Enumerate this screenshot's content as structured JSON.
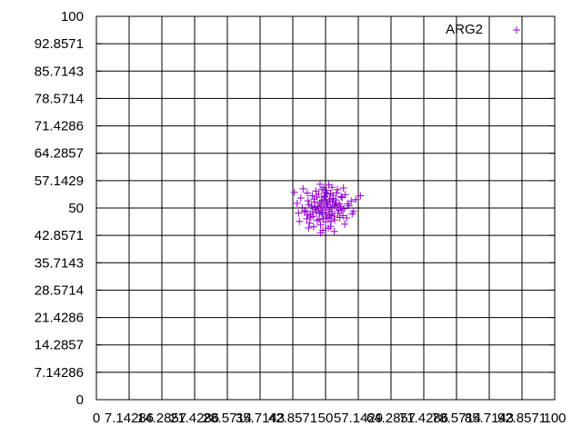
{
  "chart_data": {
    "type": "scatter",
    "title": "",
    "xlabel": "",
    "ylabel": "",
    "xlim": [
      0,
      100
    ],
    "ylim": [
      0,
      100
    ],
    "grid": true,
    "legend_position": "top-right",
    "x_ticks": [
      "0",
      "7.14286",
      "14.2857",
      "21.4286",
      "28.5714",
      "35.7143",
      "42.8571",
      "50",
      "57.1429",
      "64.2857",
      "71.4286",
      "78.5714",
      "85.7143",
      "92.8571",
      "100"
    ],
    "y_ticks": [
      "0",
      "7.14286",
      "14.2857",
      "21.4286",
      "28.5714",
      "35.7143",
      "42.8571",
      "50",
      "57.1429",
      "64.2857",
      "71.4286",
      "78.5714",
      "85.7143",
      "92.8571",
      "100"
    ],
    "series": [
      {
        "name": "ARG2",
        "color": "#9400d3",
        "marker": "plus",
        "points": [
          [
            50.0,
            50.0
          ],
          [
            48.7,
            51.2
          ],
          [
            51.4,
            49.1
          ],
          [
            49.2,
            48.3
          ],
          [
            52.1,
            50.8
          ],
          [
            47.8,
            49.6
          ],
          [
            50.9,
            52.3
          ],
          [
            49.5,
            47.2
          ],
          [
            53.0,
            51.0
          ],
          [
            46.9,
            50.5
          ],
          [
            51.8,
            47.9
          ],
          [
            48.1,
            52.8
          ],
          [
            50.3,
            53.6
          ],
          [
            52.7,
            48.6
          ],
          [
            47.3,
            47.8
          ],
          [
            49.9,
            54.1
          ],
          [
            54.0,
            49.8
          ],
          [
            46.2,
            51.9
          ],
          [
            51.2,
            46.5
          ],
          [
            48.9,
            45.6
          ],
          [
            53.6,
            52.7
          ],
          [
            45.7,
            49.3
          ],
          [
            50.6,
            44.7
          ],
          [
            52.4,
            53.9
          ],
          [
            47.1,
            53.2
          ],
          [
            55.1,
            50.6
          ],
          [
            44.9,
            50.1
          ],
          [
            49.6,
            55.3
          ],
          [
            54.6,
            47.4
          ],
          [
            46.5,
            46.1
          ],
          [
            51.5,
            51.6
          ],
          [
            48.4,
            49.9
          ],
          [
            50.1,
            48.8
          ],
          [
            49.0,
            50.7
          ],
          [
            51.0,
            50.2
          ],
          [
            52.9,
            49.5
          ],
          [
            47.6,
            51.5
          ],
          [
            50.8,
            51.9
          ],
          [
            49.3,
            48.9
          ],
          [
            48.3,
            50.4
          ],
          [
            51.7,
            52.5
          ],
          [
            50.4,
            47.6
          ],
          [
            53.3,
            50.4
          ],
          [
            46.7,
            48.4
          ],
          [
            49.8,
            52.9
          ],
          [
            52.0,
            46.9
          ],
          [
            48.6,
            47.0
          ],
          [
            50.2,
            54.6
          ],
          [
            55.6,
            51.8
          ],
          [
            44.6,
            52.6
          ],
          [
            51.1,
            45.2
          ],
          [
            47.9,
            54.4
          ],
          [
            53.8,
            48.0
          ],
          [
            45.9,
            47.2
          ],
          [
            49.4,
            44.2
          ],
          [
            52.6,
            54.8
          ],
          [
            56.1,
            49.1
          ],
          [
            44.1,
            48.7
          ],
          [
            50.7,
            56.0
          ],
          [
            48.8,
            56.2
          ],
          [
            54.3,
            53.5
          ],
          [
            46.0,
            53.9
          ],
          [
            51.9,
            43.9
          ],
          [
            47.4,
            45.1
          ],
          [
            56.6,
            52.2
          ],
          [
            43.8,
            51.2
          ],
          [
            50.5,
            50.9
          ],
          [
            49.1,
            51.8
          ],
          [
            51.3,
            48.4
          ],
          [
            48.0,
            48.9
          ],
          [
            52.3,
            51.4
          ],
          [
            47.7,
            50.2
          ],
          [
            50.0,
            46.4
          ],
          [
            49.7,
            53.1
          ],
          [
            53.5,
            49.3
          ],
          [
            46.4,
            50.9
          ],
          [
            51.6,
            53.3
          ],
          [
            48.2,
            46.7
          ],
          [
            54.8,
            51.1
          ],
          [
            45.4,
            49.0
          ],
          [
            50.9,
            48.1
          ],
          [
            49.0,
            49.4
          ],
          [
            52.2,
            52.1
          ],
          [
            47.5,
            52.3
          ],
          [
            53.1,
            47.5
          ],
          [
            46.8,
            47.6
          ],
          [
            50.3,
            51.4
          ],
          [
            49.6,
            50.3
          ],
          [
            51.9,
            50.5
          ],
          [
            48.5,
            53.6
          ],
          [
            55.8,
            48.5
          ],
          [
            44.3,
            46.5
          ],
          [
            57.6,
            53.2
          ],
          [
            43.2,
            54.1
          ],
          [
            51.4,
            55.4
          ],
          [
            48.9,
            43.5
          ],
          [
            54.2,
            45.8
          ],
          [
            45.1,
            55.0
          ],
          [
            53.9,
            55.2
          ],
          [
            46.3,
            44.8
          ],
          [
            50.6,
            49.6
          ],
          [
            49.4,
            52.1
          ],
          [
            52.5,
            50.1
          ],
          [
            47.2,
            49.0
          ],
          [
            51.1,
            53.8
          ],
          [
            48.7,
            48.6
          ],
          [
            50.8,
            47.3
          ],
          [
            49.2,
            54.8
          ],
          [
            53.4,
            53.0
          ],
          [
            46.1,
            48.1
          ]
        ]
      }
    ]
  }
}
